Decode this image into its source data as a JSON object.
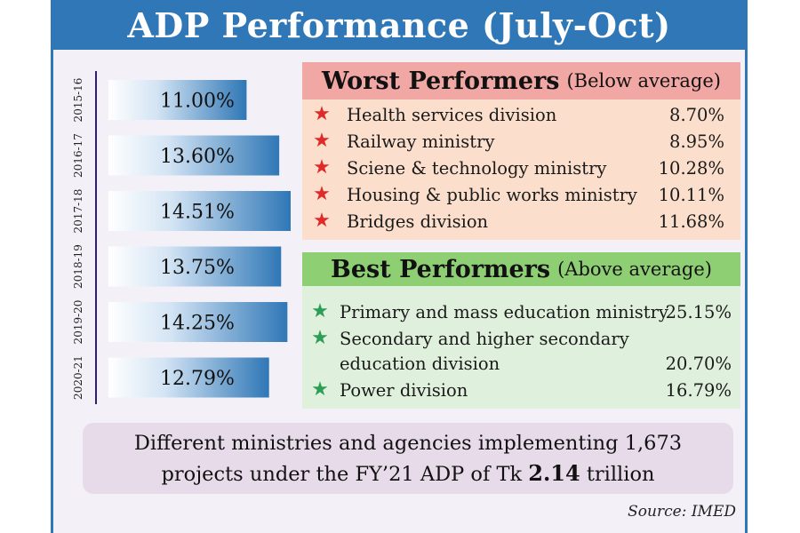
{
  "title": "ADP Performance (July-Oct)",
  "chart_data": {
    "type": "bar",
    "orientation": "horizontal",
    "categories": [
      "2015-16",
      "2016-17",
      "2017-18",
      "2018-19",
      "2019-20",
      "2020-21"
    ],
    "values": [
      11.0,
      13.6,
      14.51,
      13.75,
      14.25,
      12.79
    ],
    "labels": [
      "11.00%",
      "13.60%",
      "14.51%",
      "13.75%",
      "14.25%",
      "12.79%"
    ],
    "xlim": [
      0,
      14.51
    ],
    "bar_color": "#2f77b6"
  },
  "worst": {
    "title": "Worst Performers",
    "subtitle": "(Below average)",
    "star": "★",
    "items": [
      {
        "name": "Health services division",
        "value": "8.70%"
      },
      {
        "name": "Railway ministry",
        "value": "8.95%"
      },
      {
        "name": "Sciene & technology ministry",
        "value": "10.28%"
      },
      {
        "name": "Housing & public works ministry",
        "value": "10.11%"
      },
      {
        "name": "Bridges division",
        "value": "11.68%"
      }
    ]
  },
  "best": {
    "title": "Best Performers",
    "subtitle": "(Above average)",
    "star": "★",
    "items": [
      {
        "name": "Primary and mass education ministry",
        "value": "25.15%"
      },
      {
        "name_line1": "Secondary and higher secondary",
        "name_line2": "education division",
        "value": "20.70%"
      },
      {
        "name": "Power division",
        "value": "16.79%"
      }
    ]
  },
  "note": {
    "line1": "Different ministries and agencies implementing 1,673",
    "line2_pre": "projects under the FY’21 ADP of Tk",
    "line2_bold": "2.14",
    "line2_post": "trillion"
  },
  "source": "Source: IMED"
}
